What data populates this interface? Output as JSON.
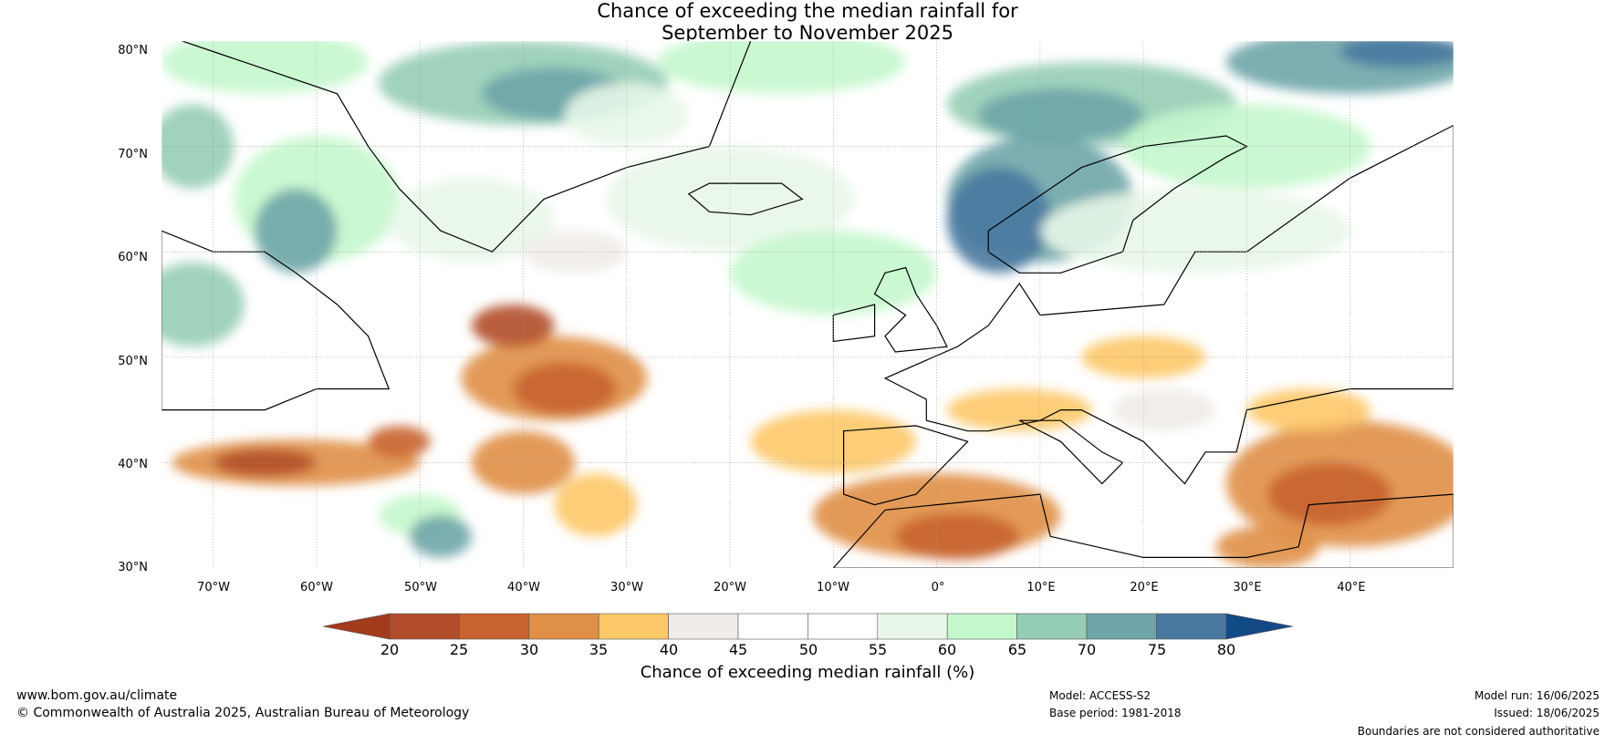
{
  "title": {
    "line1": "Chance of exceeding the median rainfall for",
    "line2": "September to November 2025"
  },
  "map": {
    "lat_ticks": [
      "80°N",
      "70°N",
      "60°N",
      "50°N",
      "40°N",
      "30°N"
    ],
    "lon_ticks": [
      "70°W",
      "60°W",
      "50°W",
      "40°W",
      "30°W",
      "20°W",
      "10°W",
      "0°",
      "10°E",
      "20°E",
      "30°E",
      "40°E"
    ],
    "extent": {
      "lon": [
        -75,
        50
      ],
      "lat": [
        30,
        80
      ]
    }
  },
  "colorbar": {
    "ticks": [
      "20",
      "25",
      "30",
      "35",
      "40",
      "45",
      "50",
      "55",
      "60",
      "65",
      "70",
      "75",
      "80"
    ],
    "colors": [
      "#a23b1b",
      "#b14c2a",
      "#c8632f",
      "#e08f47",
      "#fdc868",
      "#f0ece8",
      "#ffffff",
      "#ffffff",
      "#e8f7e8",
      "#c4f7cc",
      "#96cdb5",
      "#6fa5a8",
      "#4878a0",
      "#124a86"
    ],
    "label": "Chance of exceeding median rainfall (%)"
  },
  "footer": {
    "website": "www.bom.gov.au/climate",
    "copyright": "© Commonwealth of Australia 2025, Australian Bureau of Meteorology",
    "model": "Model: ACCESS-S2",
    "base_period": "Base period: 1981-2018",
    "model_run": "Model run: 16/06/2025",
    "issued": "Issued: 18/06/2025",
    "disclaimer": "Boundaries are not considered authoritative"
  }
}
